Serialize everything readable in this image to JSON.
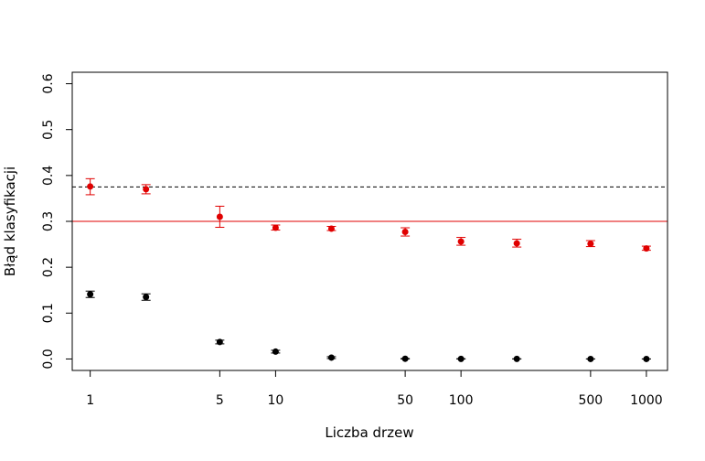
{
  "chart_data": {
    "type": "scatter",
    "xlabel": "Liczba drzew",
    "ylabel": "Błąd klasyfikacji",
    "x_scale": "log",
    "xlim": [
      0.8,
      1300
    ],
    "ylim": [
      -0.025,
      0.625
    ],
    "x_ticks": [
      1,
      5,
      10,
      50,
      100,
      500,
      1000
    ],
    "x_tick_labels": [
      "1",
      "5",
      "10",
      "50",
      "100",
      "500",
      "1000"
    ],
    "y_ticks": [
      0.0,
      0.1,
      0.2,
      0.3,
      0.4,
      0.5,
      0.6
    ],
    "y_tick_labels": [
      "0.0",
      "0.1",
      "0.2",
      "0.3",
      "0.4",
      "0.5",
      "0.6"
    ],
    "grid": false,
    "series": [
      {
        "color": "#e00000",
        "points": [
          {
            "x": 1,
            "y": 0.376,
            "lo": 0.358,
            "hi": 0.393
          },
          {
            "x": 2,
            "y": 0.37,
            "lo": 0.36,
            "hi": 0.38
          },
          {
            "x": 5,
            "y": 0.31,
            "lo": 0.287,
            "hi": 0.333
          },
          {
            "x": 10,
            "y": 0.286,
            "lo": 0.281,
            "hi": 0.292
          },
          {
            "x": 20,
            "y": 0.284,
            "lo": 0.28,
            "hi": 0.289
          },
          {
            "x": 50,
            "y": 0.277,
            "lo": 0.268,
            "hi": 0.286
          },
          {
            "x": 100,
            "y": 0.256,
            "lo": 0.248,
            "hi": 0.265
          },
          {
            "x": 200,
            "y": 0.252,
            "lo": 0.244,
            "hi": 0.261
          },
          {
            "x": 500,
            "y": 0.251,
            "lo": 0.245,
            "hi": 0.258
          },
          {
            "x": 1000,
            "y": 0.241,
            "lo": 0.237,
            "hi": 0.246
          }
        ]
      },
      {
        "color": "#000000",
        "points": [
          {
            "x": 1,
            "y": 0.141,
            "lo": 0.134,
            "hi": 0.148
          },
          {
            "x": 2,
            "y": 0.135,
            "lo": 0.128,
            "hi": 0.142
          },
          {
            "x": 5,
            "y": 0.037,
            "lo": 0.033,
            "hi": 0.041
          },
          {
            "x": 10,
            "y": 0.016,
            "lo": 0.013,
            "hi": 0.019
          },
          {
            "x": 20,
            "y": 0.003,
            "lo": 0.001,
            "hi": 0.005
          },
          {
            "x": 50,
            "y": 0.0005,
            "lo": 0.0,
            "hi": 0.001
          },
          {
            "x": 100,
            "y": 0.0002,
            "lo": 0.0,
            "hi": 0.0005
          },
          {
            "x": 200,
            "y": 0.0001,
            "lo": 0.0,
            "hi": 0.0003
          },
          {
            "x": 500,
            "y": 0.0,
            "lo": 0.0,
            "hi": 0.0002
          },
          {
            "x": 1000,
            "y": 0.0,
            "lo": 0.0,
            "hi": 0.0001
          }
        ]
      }
    ],
    "reference_lines": [
      {
        "orientation": "horizontal",
        "y": 0.375,
        "color": "#000000",
        "style": "dashed"
      },
      {
        "orientation": "horizontal",
        "y": 0.3,
        "color": "#e00000",
        "style": "solid"
      }
    ]
  }
}
